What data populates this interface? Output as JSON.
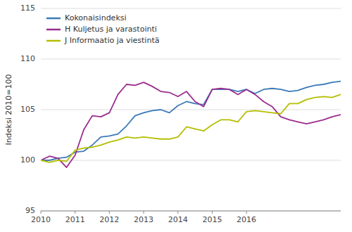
{
  "chart_data": {
    "type": "line",
    "ylabel": "Indeksi 2010=100",
    "categories": [
      "2010",
      null,
      null,
      null,
      "2011",
      null,
      null,
      null,
      "2012",
      null,
      null,
      null,
      "2013",
      null,
      null,
      null,
      "2014",
      null,
      null,
      null,
      "2015",
      null,
      null,
      null,
      "2016",
      null,
      null,
      null,
      null,
      null,
      null,
      null,
      null,
      null,
      null,
      null
    ],
    "series": [
      {
        "name": "Kokonaisindeksi",
        "color": "#3a7ab8",
        "values": [
          100.0,
          100.0,
          100.2,
          100.3,
          100.8,
          100.9,
          101.5,
          102.3,
          102.4,
          102.6,
          103.4,
          104.4,
          104.7,
          104.9,
          105.0,
          104.7,
          105.4,
          105.8,
          105.6,
          105.5,
          107.0,
          107.0,
          107.0,
          106.8,
          107.0,
          106.6,
          107.0,
          107.1,
          107.0,
          106.8,
          106.9,
          107.2,
          107.4,
          107.5,
          107.7,
          107.8
        ]
      },
      {
        "name": "H Kuljetus ja varastointi",
        "color": "#9b2d8e",
        "values": [
          100.0,
          100.4,
          100.2,
          99.3,
          100.5,
          103.0,
          104.4,
          104.3,
          104.7,
          106.5,
          107.5,
          107.4,
          107.7,
          107.3,
          106.8,
          106.7,
          106.3,
          106.8,
          105.8,
          105.3,
          107.0,
          107.1,
          107.0,
          106.5,
          107.0,
          106.5,
          105.8,
          105.3,
          104.3,
          104.0,
          103.8,
          103.6,
          103.8,
          104.0,
          104.3,
          104.5
        ]
      },
      {
        "name": "J Informaatio ja viestintä",
        "color": "#b5be00",
        "values": [
          100.0,
          99.8,
          100.0,
          99.9,
          101.0,
          101.2,
          101.3,
          101.5,
          101.8,
          102.0,
          102.3,
          102.2,
          102.3,
          102.2,
          102.1,
          102.1,
          102.3,
          103.3,
          103.1,
          102.9,
          103.5,
          104.0,
          104.0,
          103.8,
          104.8,
          104.9,
          104.8,
          104.7,
          104.6,
          105.6,
          105.6,
          106.0,
          106.2,
          106.3,
          106.2,
          106.5
        ]
      }
    ],
    "ylim": [
      95,
      115
    ],
    "yticks": [
      95,
      100,
      105,
      110,
      115
    ],
    "grid": true,
    "legend": "upper left"
  }
}
